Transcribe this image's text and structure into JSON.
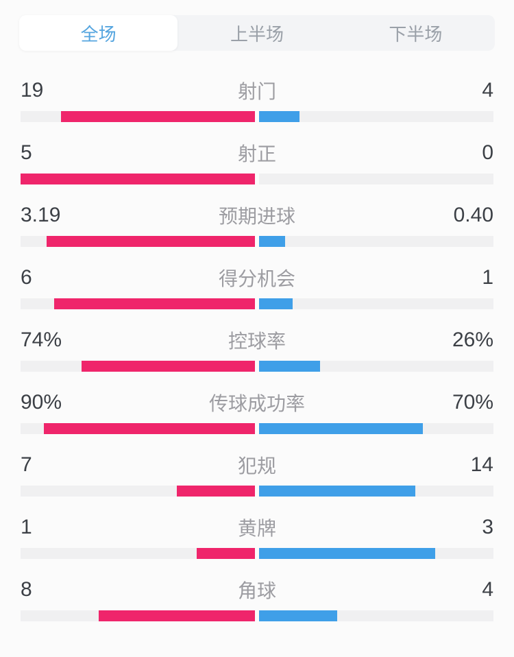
{
  "tabs": {
    "items": [
      {
        "label": "全场",
        "active": true
      },
      {
        "label": "上半场",
        "active": false
      },
      {
        "label": "下半场",
        "active": false
      }
    ]
  },
  "colors": {
    "home_bar": "#ef256b",
    "away_bar": "#3f9fe8",
    "bar_track": "#f0f0f1",
    "active_tab_text": "#55a5df",
    "inactive_tab_text": "#9aa0a8",
    "value_text": "#3c4046",
    "label_text": "#9c9ca1"
  },
  "stats": [
    {
      "label": "射门",
      "home": "19",
      "away": "4",
      "home_pct": 82.61,
      "away_pct": 17.39
    },
    {
      "label": "射正",
      "home": "5",
      "away": "0",
      "home_pct": 100,
      "away_pct": 0
    },
    {
      "label": "预期进球",
      "home": "3.19",
      "away": "0.40",
      "home_pct": 88.86,
      "away_pct": 11.14
    },
    {
      "label": "得分机会",
      "home": "6",
      "away": "1",
      "home_pct": 85.71,
      "away_pct": 14.29
    },
    {
      "label": "控球率",
      "home": "74%",
      "away": "26%",
      "home_pct": 74,
      "away_pct": 26
    },
    {
      "label": "传球成功率",
      "home": "90%",
      "away": "70%",
      "home_pct": 90,
      "away_pct": 70
    },
    {
      "label": "犯规",
      "home": "7",
      "away": "14",
      "home_pct": 33.33,
      "away_pct": 66.67
    },
    {
      "label": "黄牌",
      "home": "1",
      "away": "3",
      "home_pct": 25,
      "away_pct": 75
    },
    {
      "label": "角球",
      "home": "8",
      "away": "4",
      "home_pct": 66.67,
      "away_pct": 33.33
    }
  ],
  "chart_data": {
    "type": "bar",
    "orientation": "paired-horizontal-from-center",
    "categories": [
      "射门",
      "射正",
      "预期进球",
      "得分机会",
      "控球率",
      "传球成功率",
      "犯规",
      "黄牌",
      "角球"
    ],
    "series": [
      {
        "name": "home",
        "color": "#ef256b",
        "values": [
          19,
          5,
          3.19,
          6,
          74,
          90,
          7,
          1,
          8
        ]
      },
      {
        "name": "away",
        "color": "#3f9fe8",
        "values": [
          4,
          0,
          0.4,
          1,
          26,
          70,
          14,
          3,
          4
        ]
      }
    ],
    "value_units": [
      "count",
      "count",
      "xG",
      "count",
      "percent",
      "percent",
      "count",
      "count",
      "count"
    ],
    "title": "全场 (Full match statistics)",
    "legend_position": "none",
    "grid": false
  }
}
